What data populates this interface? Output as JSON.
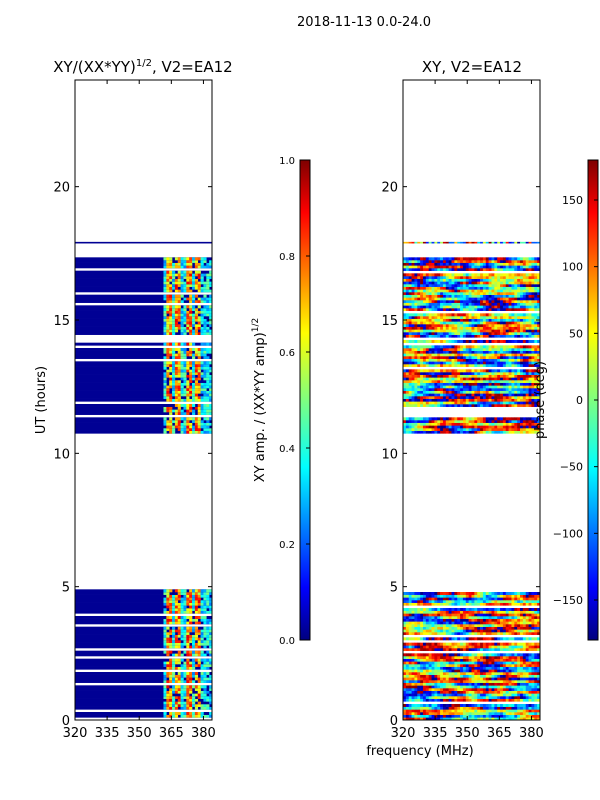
{
  "figure": {
    "suptitle": "2018-11-13 0.0-24.0",
    "shared_xlabel": "frequency (MHz)"
  },
  "colors": {
    "jet": [
      "#00007f",
      "#0000ff",
      "#007fff",
      "#00ffff",
      "#7fff7f",
      "#ffff00",
      "#ff7f00",
      "#ff0000",
      "#7f0000"
    ]
  },
  "chart_data": [
    {
      "type": "heatmap",
      "title_main": "XY/(XX*YY)",
      "title_sup": "1/2",
      "title_tail": ", V2=EA12",
      "xlabel": "",
      "ylabel": "UT (hours)",
      "xlim": [
        320,
        384
      ],
      "ylim": [
        0,
        24
      ],
      "xticks": [
        320,
        335,
        350,
        365,
        380
      ],
      "yticks": [
        0,
        5,
        10,
        15,
        20
      ],
      "colorscale": "jet",
      "bright_channels_mhz": [
        363.8,
        368.6,
        372.8,
        377.0
      ],
      "data_blocks": [
        {
          "t_start": 0.0,
          "t_end": 4.9,
          "base_value": 0.02,
          "channel_value": 0.55,
          "from_mhz": 361
        },
        {
          "t_start": 10.75,
          "t_end": 17.3,
          "base_value": 0.02,
          "channel_value": 0.55,
          "from_mhz": 361
        }
      ],
      "isolated_rows": [
        {
          "t": 17.85,
          "value": 0.02
        }
      ],
      "colorbar": {
        "label": "XY amp. / (XX*YY amp)",
        "label_sup": "1/2",
        "range": [
          0.0,
          1.0
        ],
        "ticks": [
          "0.0",
          "0.2",
          "0.4",
          "0.6",
          "0.8",
          "1.0"
        ]
      }
    },
    {
      "type": "heatmap",
      "title": "XY, V2=EA12",
      "xlabel": "frequency (MHz)",
      "ylabel": "",
      "xlim": [
        320,
        384
      ],
      "ylim": [
        0,
        24
      ],
      "xticks": [
        320,
        335,
        350,
        365,
        380
      ],
      "yticks": [
        0,
        5,
        10,
        15,
        20
      ],
      "colorscale": "jet",
      "data_blocks": [
        {
          "t_start": 0.0,
          "t_end": 4.9,
          "value": "phase, varied"
        },
        {
          "t_start": 10.75,
          "t_end": 17.3,
          "value": "phase, varied"
        }
      ],
      "isolated_rows": [
        {
          "t": 17.85,
          "value": "phase, varied"
        }
      ],
      "colorbar": {
        "label": "phase (deg)",
        "range": [
          -180,
          180
        ],
        "ticks": [
          "−150",
          "−100",
          "−50",
          "0",
          "50",
          "100",
          "150"
        ],
        "tick_values": [
          -150,
          -100,
          -50,
          0,
          50,
          100,
          150
        ]
      }
    }
  ]
}
